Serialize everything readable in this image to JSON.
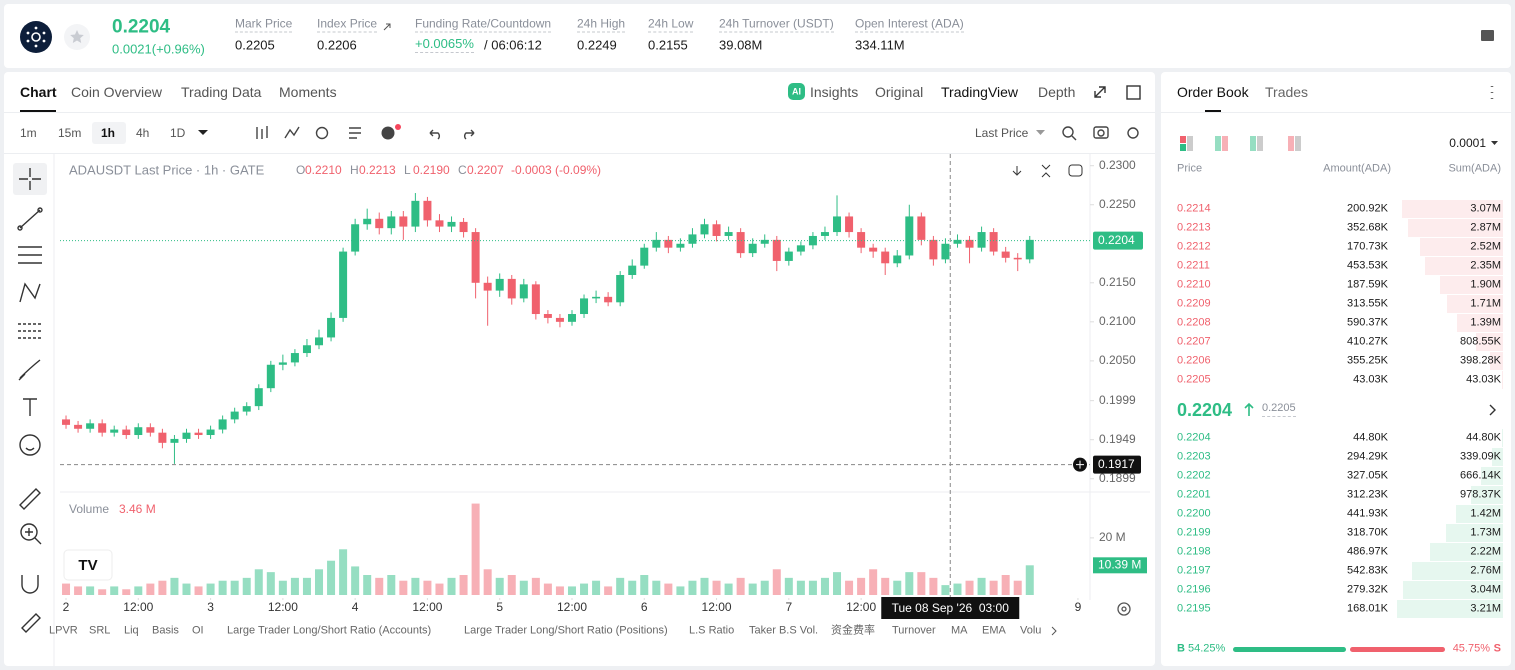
{
  "header": {
    "price": "0.2204",
    "change": "0.0021(+0.96%)",
    "stats": [
      {
        "label": "Mark Price",
        "value": "0.2205"
      },
      {
        "label": "Index Price",
        "value": "0.2206"
      },
      {
        "label": "Funding Rate/Countdown",
        "value": "+0.0065%",
        "extra": "/ 06:06:12"
      },
      {
        "label": "24h High",
        "value": "0.2249"
      },
      {
        "label": "24h Low",
        "value": "0.2155"
      },
      {
        "label": "24h Turnover (USDT)",
        "value": "39.08M"
      },
      {
        "label": "Open Interest (ADA)",
        "value": "334.11M"
      }
    ]
  },
  "chart_tabs": [
    "Chart",
    "Coin Overview",
    "Trading Data",
    "Moments"
  ],
  "view_tabs": [
    "Insights",
    "Original",
    "TradingView",
    "Depth"
  ],
  "intervals": [
    "1m",
    "15m",
    "1h",
    "4h",
    "1D"
  ],
  "price_source": "Last Price",
  "indicators": [
    "LPVR",
    "SRL",
    "Liq",
    "Basis",
    "OI",
    "Large Trader Long/Short Ratio (Accounts)",
    "Large Trader Long/Short Ratio (Positions)",
    "L.S Ratio",
    "Taker B.S Vol.",
    "资金费率",
    "Turnover",
    "MA",
    "EMA",
    "Volu"
  ],
  "chart_data": {
    "type": "candlestick",
    "title": "ADAUSDT Last Price · 1h · GATE",
    "ohlc": [
      {
        "label": "O",
        "value": "0.2210"
      },
      {
        "label": "H",
        "value": "0.2213"
      },
      {
        "label": "L",
        "value": "0.2190"
      },
      {
        "label": "C",
        "value": "0.2207"
      }
    ],
    "change": "-0.0003 (-0.09%)",
    "up_color": "#2ebd85",
    "down_color": "#f0616d",
    "open": [
      0.1975,
      0.1968,
      0.1963,
      0.197,
      0.1958,
      0.1962,
      0.1955,
      0.1965,
      0.1958,
      0.1945,
      0.195,
      0.1958,
      0.1955,
      0.1962,
      0.1975,
      0.1985,
      0.1992,
      0.2015,
      0.2045,
      0.2048,
      0.206,
      0.207,
      0.208,
      0.2105,
      0.219,
      0.2225,
      0.2232,
      0.222,
      0.2235,
      0.2222,
      0.2255,
      0.223,
      0.2222,
      0.2228,
      0.2215,
      0.215,
      0.214,
      0.2155,
      0.213,
      0.2148,
      0.211,
      0.2105,
      0.21,
      0.211,
      0.213,
      0.2132,
      0.2125,
      0.216,
      0.2172,
      0.2195,
      0.2205,
      0.2195,
      0.22,
      0.2212,
      0.2225,
      0.221,
      0.2215,
      0.2188,
      0.22,
      0.2205,
      0.2178,
      0.219,
      0.2198,
      0.221,
      0.2215,
      0.2235,
      0.2215,
      0.2195,
      0.219,
      0.2175,
      0.2185,
      0.2235,
      0.2205,
      0.218,
      0.22,
      0.2205,
      0.2195,
      0.2215,
      0.219,
      0.2182,
      0.218
    ],
    "high": [
      0.198,
      0.1973,
      0.1975,
      0.1975,
      0.1967,
      0.1967,
      0.197,
      0.197,
      0.1963,
      0.1955,
      0.1963,
      0.1963,
      0.1967,
      0.198,
      0.199,
      0.1997,
      0.202,
      0.205,
      0.2058,
      0.2065,
      0.2078,
      0.209,
      0.2112,
      0.2195,
      0.2232,
      0.2245,
      0.224,
      0.2242,
      0.2242,
      0.2265,
      0.226,
      0.2238,
      0.2235,
      0.2233,
      0.222,
      0.2158,
      0.2162,
      0.216,
      0.2155,
      0.2152,
      0.2115,
      0.211,
      0.2115,
      0.2135,
      0.214,
      0.2138,
      0.2165,
      0.218,
      0.22,
      0.2215,
      0.221,
      0.2207,
      0.222,
      0.2232,
      0.223,
      0.2222,
      0.222,
      0.2207,
      0.2212,
      0.221,
      0.2195,
      0.2203,
      0.2215,
      0.2222,
      0.2262,
      0.224,
      0.222,
      0.22,
      0.2195,
      0.2192,
      0.225,
      0.224,
      0.221,
      0.2207,
      0.2212,
      0.221,
      0.2222,
      0.222,
      0.2196,
      0.2188,
      0.221
    ],
    "low": [
      0.1963,
      0.1958,
      0.1958,
      0.1953,
      0.1953,
      0.195,
      0.195,
      0.1953,
      0.1938,
      0.1918,
      0.1945,
      0.195,
      0.195,
      0.1957,
      0.197,
      0.198,
      0.1987,
      0.201,
      0.2038,
      0.2043,
      0.2055,
      0.2065,
      0.2075,
      0.21,
      0.2185,
      0.2218,
      0.2212,
      0.2212,
      0.2205,
      0.2215,
      0.2222,
      0.2215,
      0.2215,
      0.2208,
      0.213,
      0.2095,
      0.2132,
      0.2122,
      0.2125,
      0.2103,
      0.2098,
      0.2093,
      0.2095,
      0.2105,
      0.2124,
      0.212,
      0.212,
      0.2155,
      0.2168,
      0.219,
      0.2188,
      0.219,
      0.2195,
      0.2207,
      0.2203,
      0.2205,
      0.2182,
      0.2183,
      0.2195,
      0.2165,
      0.2172,
      0.2185,
      0.2193,
      0.2205,
      0.221,
      0.2208,
      0.2188,
      0.2182,
      0.216,
      0.217,
      0.218,
      0.2198,
      0.2172,
      0.2175,
      0.2195,
      0.2175,
      0.219,
      0.2185,
      0.2176,
      0.2165,
      0.2175
    ],
    "close": [
      0.1968,
      0.1963,
      0.197,
      0.1958,
      0.1962,
      0.1955,
      0.1965,
      0.1958,
      0.1945,
      0.195,
      0.1958,
      0.1955,
      0.1962,
      0.1975,
      0.1985,
      0.1992,
      0.2015,
      0.2045,
      0.2048,
      0.206,
      0.207,
      0.208,
      0.2105,
      0.219,
      0.2225,
      0.2232,
      0.222,
      0.2235,
      0.2222,
      0.2255,
      0.223,
      0.2222,
      0.2228,
      0.2215,
      0.215,
      0.214,
      0.2155,
      0.213,
      0.2148,
      0.211,
      0.2105,
      0.21,
      0.211,
      0.213,
      0.2132,
      0.2125,
      0.216,
      0.2172,
      0.2195,
      0.2205,
      0.2195,
      0.22,
      0.2212,
      0.2225,
      0.221,
      0.2215,
      0.2188,
      0.22,
      0.2205,
      0.2178,
      0.219,
      0.2198,
      0.221,
      0.2215,
      0.2235,
      0.2215,
      0.2195,
      0.219,
      0.2175,
      0.2185,
      0.2235,
      0.2205,
      0.218,
      0.22,
      0.2205,
      0.2195,
      0.2215,
      0.219,
      0.2182,
      0.218,
      0.2205
    ],
    "volume": [
      4,
      3,
      3,
      2,
      3,
      2,
      3,
      4,
      5,
      6,
      4,
      3,
      4,
      5,
      5,
      6,
      9,
      8,
      5,
      6,
      6,
      9,
      12,
      16,
      10,
      7,
      6,
      7,
      5,
      6,
      5,
      4,
      6,
      7,
      32,
      9,
      6,
      7,
      5,
      6,
      4,
      3,
      3,
      4,
      5,
      3,
      6,
      5,
      7,
      5,
      4,
      3,
      5,
      6,
      5,
      4,
      6,
      4,
      5,
      9,
      6,
      5,
      5,
      6,
      8,
      5,
      6,
      9,
      6,
      5,
      8,
      8,
      6,
      3.46,
      4,
      5,
      6,
      5,
      7,
      5,
      10.39
    ],
    "xlim": [
      -0.5,
      85
    ],
    "xticks": [
      {
        "value": 0,
        "label": "2"
      },
      {
        "value": 6,
        "label": "12:00"
      },
      {
        "value": 12,
        "label": "3"
      },
      {
        "value": 18,
        "label": "12:00"
      },
      {
        "value": 24,
        "label": "4"
      },
      {
        "value": 30,
        "label": "12:00"
      },
      {
        "value": 36,
        "label": "5"
      },
      {
        "value": 42,
        "label": "12:00"
      },
      {
        "value": 48,
        "label": "6"
      },
      {
        "value": 54,
        "label": "12:00"
      },
      {
        "value": 60,
        "label": "7"
      },
      {
        "value": 66,
        "label": "12:00"
      },
      {
        "value": 84,
        "label": "9"
      }
    ],
    "ylim": [
      0.1882,
      0.2315
    ],
    "yticks": [
      {
        "value": 0.23,
        "label": "0.2300"
      },
      {
        "value": 0.225,
        "label": "0.2250"
      },
      {
        "value": 0.215,
        "label": "0.2150"
      },
      {
        "value": 0.21,
        "label": "0.2100"
      },
      {
        "value": 0.205,
        "label": "0.2050"
      },
      0.1999,
      0.1949,
      0.1899
    ],
    "last_price": {
      "value": 0.2204,
      "label": "0.2204"
    },
    "crosshair": {
      "x": 73.4,
      "time": "Tue 08 Sep '26  03:00",
      "price": {
        "value": 0.1917,
        "label": "0.1917"
      }
    },
    "volume_title": "Volume",
    "volume_value": {
      "value": 3.46,
      "label": "3.46 M"
    },
    "vlim": [
      0,
      35
    ],
    "vticks": [
      {
        "value": 20,
        "label": "20 M"
      }
    ],
    "volume_last": {
      "value": 10.39,
      "label": "10.39 M"
    }
  },
  "order_book": {
    "tabs": [
      "Order Book",
      "Trades"
    ],
    "precision": "0.0001",
    "columns": [
      "Price",
      "Amount(ADA)",
      "Sum(ADA)"
    ],
    "asks": [
      {
        "price": "0.2214",
        "amount": "200.92K",
        "sum": {
          "value": 3070000,
          "label": "3.07M"
        }
      },
      {
        "price": "0.2213",
        "amount": "352.68K",
        "sum": {
          "value": 2870000,
          "label": "2.87M"
        }
      },
      {
        "price": "0.2212",
        "amount": "170.73K",
        "sum": {
          "value": 2520000,
          "label": "2.52M"
        }
      },
      {
        "price": "0.2211",
        "amount": "453.53K",
        "sum": {
          "value": 2350000,
          "label": "2.35M"
        }
      },
      {
        "price": "0.2210",
        "amount": "187.59K",
        "sum": {
          "value": 1900000,
          "label": "1.90M"
        }
      },
      {
        "price": "0.2209",
        "amount": "313.55K",
        "sum": {
          "value": 1710000,
          "label": "1.71M"
        }
      },
      {
        "price": "0.2208",
        "amount": "590.37K",
        "sum": {
          "value": 1390000,
          "label": "1.39M"
        }
      },
      {
        "price": "0.2207",
        "amount": "410.27K",
        "sum": {
          "value": 808550,
          "label": "808.55K"
        }
      },
      {
        "price": "0.2206",
        "amount": "355.25K",
        "sum": {
          "value": 398280,
          "label": "398.28K"
        }
      },
      {
        "price": "0.2205",
        "amount": "43.03K",
        "sum": {
          "value": 43030,
          "label": "43.03K"
        }
      }
    ],
    "mid": {
      "price": "0.2204",
      "mark": "0.2205"
    },
    "bids": [
      {
        "price": "0.2204",
        "amount": "44.80K",
        "sum": {
          "value": 44800,
          "label": "44.80K"
        }
      },
      {
        "price": "0.2203",
        "amount": "294.29K",
        "sum": {
          "value": 339090,
          "label": "339.09K"
        }
      },
      {
        "price": "0.2202",
        "amount": "327.05K",
        "sum": {
          "value": 666140,
          "label": "666.14K"
        }
      },
      {
        "price": "0.2201",
        "amount": "312.23K",
        "sum": {
          "value": 978370,
          "label": "978.37K"
        }
      },
      {
        "price": "0.2200",
        "amount": "441.93K",
        "sum": {
          "value": 1420000,
          "label": "1.42M"
        }
      },
      {
        "price": "0.2199",
        "amount": "318.70K",
        "sum": {
          "value": 1730000,
          "label": "1.73M"
        }
      },
      {
        "price": "0.2198",
        "amount": "486.97K",
        "sum": {
          "value": 2220000,
          "label": "2.22M"
        }
      },
      {
        "price": "0.2197",
        "amount": "542.83K",
        "sum": {
          "value": 2760000,
          "label": "2.76M"
        }
      },
      {
        "price": "0.2196",
        "amount": "279.32K",
        "sum": {
          "value": 3040000,
          "label": "3.04M"
        }
      },
      {
        "price": "0.2195",
        "amount": "168.01K",
        "sum": {
          "value": 3210000,
          "label": "3.21M"
        }
      }
    ],
    "buy": {
      "letter": "B",
      "value": 54.25,
      "label": "54.25%"
    },
    "sell": {
      "letter": "S",
      "value": 45.75,
      "label": "45.75%"
    }
  }
}
